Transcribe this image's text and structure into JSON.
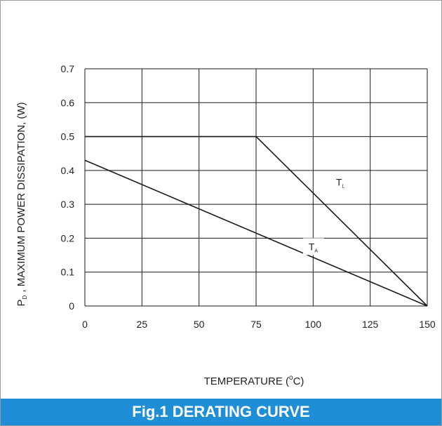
{
  "caption": "Fig.1 DERATING CURVE",
  "colors": {
    "caption_bg": "#1e8fd6",
    "frame": "#9a9a9a",
    "grid": "#1a1a1a",
    "line": "#1a1a1a",
    "label_box": "#ffffff"
  },
  "chart_data": {
    "type": "line",
    "xlabel": {
      "main": "TEMPERATURE (",
      "sup": "o",
      "tail": "C)"
    },
    "ylabel": {
      "prefix": "P",
      "sub": "D",
      "rest": " , MAXIMUM POWER DISSIPATION, (W)"
    },
    "xlim": [
      0,
      150
    ],
    "ylim": [
      0,
      0.7
    ],
    "x_ticks": [
      0,
      25,
      50,
      75,
      100,
      125,
      150
    ],
    "x_tick_labels": [
      "0",
      "25",
      "50",
      "75",
      "100",
      "125",
      "150"
    ],
    "y_ticks": [
      0,
      0.1,
      0.2,
      0.3,
      0.4,
      0.5,
      0.6,
      0.7
    ],
    "y_tick_labels": [
      "0",
      "0.1",
      "0.2",
      "0.3",
      "0.4",
      "0.5",
      "0.6",
      "0.7"
    ],
    "grid": true,
    "series": [
      {
        "label_main": "T",
        "label_sub": "L",
        "label_pos": [
          110,
          0.355
        ],
        "points": [
          [
            0,
            0.5
          ],
          [
            75,
            0.5
          ],
          [
            150,
            0
          ]
        ]
      },
      {
        "label_main": "T",
        "label_sub": "A",
        "label_pos": [
          98,
          0.165
        ],
        "points": [
          [
            0,
            0.43
          ],
          [
            150,
            0
          ]
        ]
      }
    ]
  }
}
